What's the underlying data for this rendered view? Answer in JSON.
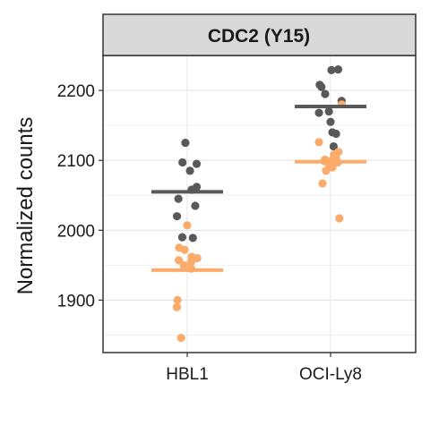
{
  "chart_data": {
    "type": "scatter",
    "title": "CDC2 (Y15)",
    "xlabel": "",
    "ylabel": "Normalized counts",
    "categories": [
      "HBL1",
      "OCI-Ly8"
    ],
    "ylim": [
      1825,
      2250
    ],
    "yticks": [
      1900,
      2000,
      2100,
      2200
    ],
    "grid": true,
    "legend": "none",
    "panel_strip_color": "#d9d9d9",
    "series": [
      {
        "color": "#595959",
        "medians": [
          2055,
          2177
        ],
        "points": {
          "HBL1": [
            2125,
            2097,
            2095,
            2085,
            2062,
            2058,
            2045,
            2035,
            2020,
            1990,
            1989
          ],
          "OCI-Ly8": [
            2230,
            2229,
            2208,
            2205,
            2195,
            2185,
            2170,
            2168,
            2155,
            2140,
            2138,
            2120
          ]
        }
      },
      {
        "color": "#fcab6b",
        "medians": [
          1943,
          2098
        ],
        "points": {
          "HBL1": [
            2007,
            1975,
            1972,
            1962,
            1960,
            1957,
            1955,
            1950,
            1947,
            1945,
            1900,
            1890,
            1846
          ],
          "OCI-Ly8": [
            2180,
            2126,
            2112,
            2108,
            2103,
            2101,
            2100,
            2099,
            2097,
            2092,
            2090,
            2085,
            2067,
            2017
          ]
        }
      }
    ]
  }
}
